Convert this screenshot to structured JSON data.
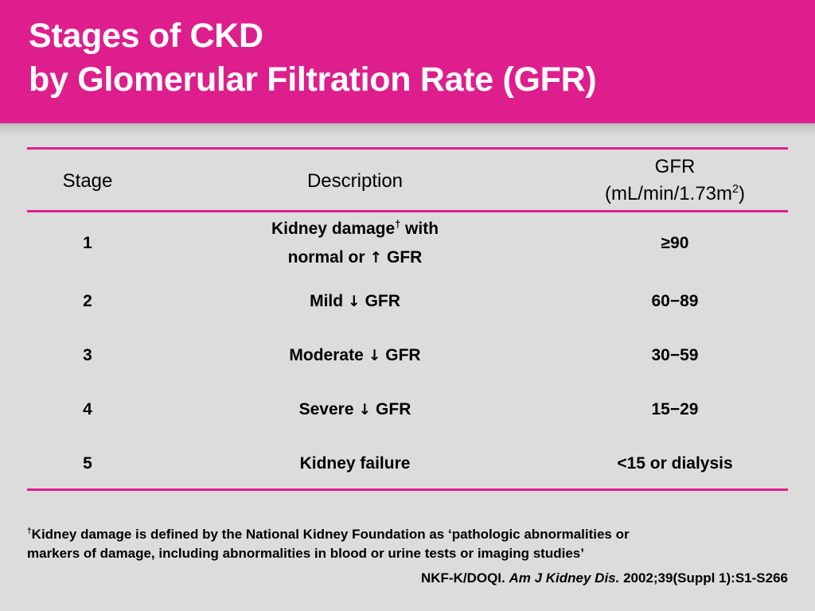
{
  "title": {
    "line1": "Stages of CKD",
    "line2": "by Glomerular Filtration Rate (GFR)"
  },
  "table": {
    "headers": {
      "stage": "Stage",
      "description": "Description",
      "gfr_line1": "GFR",
      "gfr_line2_pre": "(mL/min/1.73m",
      "gfr_line2_sup": "2",
      "gfr_line2_post": ")"
    },
    "rows": [
      {
        "stage": "1",
        "desc_line1_pre": "Kidney damage",
        "desc_line1_sup": "†",
        "desc_line1_post": " with",
        "desc_line2_pre": "normal or ",
        "desc_line2_arrow": "↑",
        "desc_line2_post": " GFR",
        "gfr": "≥90"
      },
      {
        "stage": "2",
        "desc_pre": "Mild ",
        "desc_arrow": "↓",
        "desc_post": " GFR",
        "gfr": "60−89"
      },
      {
        "stage": "3",
        "desc_pre": "Moderate ",
        "desc_arrow": "↓",
        "desc_post": " GFR",
        "gfr": "30−59"
      },
      {
        "stage": "4",
        "desc_pre": "Severe ",
        "desc_arrow": "↓",
        "desc_post": " GFR",
        "gfr": "15−29"
      },
      {
        "stage": "5",
        "desc_pre": "Kidney failure",
        "gfr": "<15 or dialysis"
      }
    ]
  },
  "footnote": {
    "marker": "†",
    "line1": "Kidney damage is defined by the National Kidney Foundation as ‘pathologic abnormalities or",
    "line2": "markers of damage, including abnormalities in blood or urine tests or imaging studies’"
  },
  "citation": {
    "source": "NKF-K/DOQI. ",
    "journal": "Am J Kidney Dis.",
    "details": " 2002;39(Suppl 1):S1-S266"
  },
  "colors": {
    "accent": "#de1e8c",
    "background": "#dcdcdc",
    "title_text": "#ffffff"
  }
}
